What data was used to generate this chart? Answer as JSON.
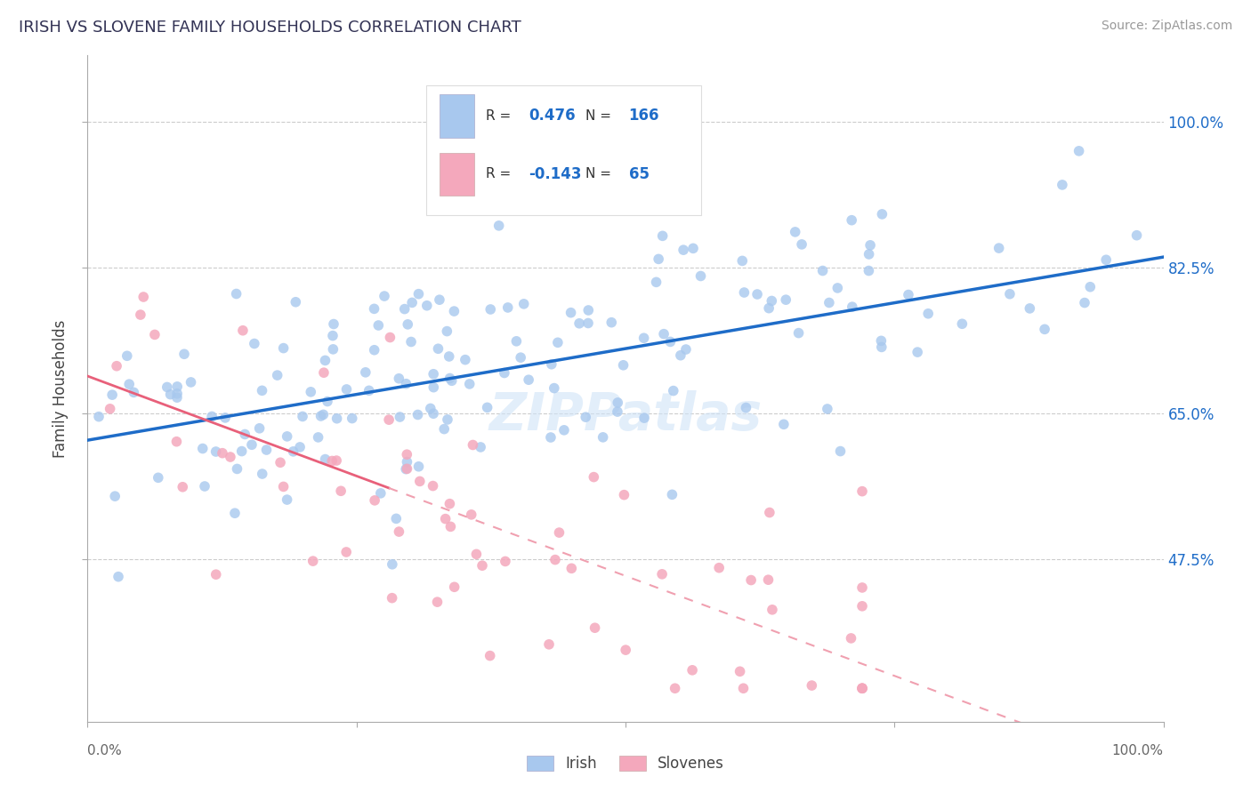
{
  "title": "IRISH VS SLOVENE FAMILY HOUSEHOLDS CORRELATION CHART",
  "source": "Source: ZipAtlas.com",
  "ylabel": "Family Households",
  "ytick_labels": [
    "47.5%",
    "65.0%",
    "82.5%",
    "100.0%"
  ],
  "ytick_values": [
    0.475,
    0.65,
    0.825,
    1.0
  ],
  "xrange": [
    0.0,
    1.0
  ],
  "yrange": [
    0.28,
    1.08
  ],
  "legend_irish_r": "0.476",
  "legend_irish_n": "166",
  "legend_slovene_r": "-0.143",
  "legend_slovene_n": "65",
  "irish_color": "#A8C8EE",
  "slovene_color": "#F4A8BC",
  "irish_line_color": "#1E6CC8",
  "slovene_line_color": "#E8607A",
  "slovene_dash_color": "#F0A0B0",
  "bottom_legend_irish": "Irish",
  "bottom_legend_slovenes": "Slovenes",
  "watermark": "ZipPatlas",
  "irish_intercept": 0.618,
  "irish_slope": 0.22,
  "slovene_intercept": 0.695,
  "slovene_slope": -0.48
}
